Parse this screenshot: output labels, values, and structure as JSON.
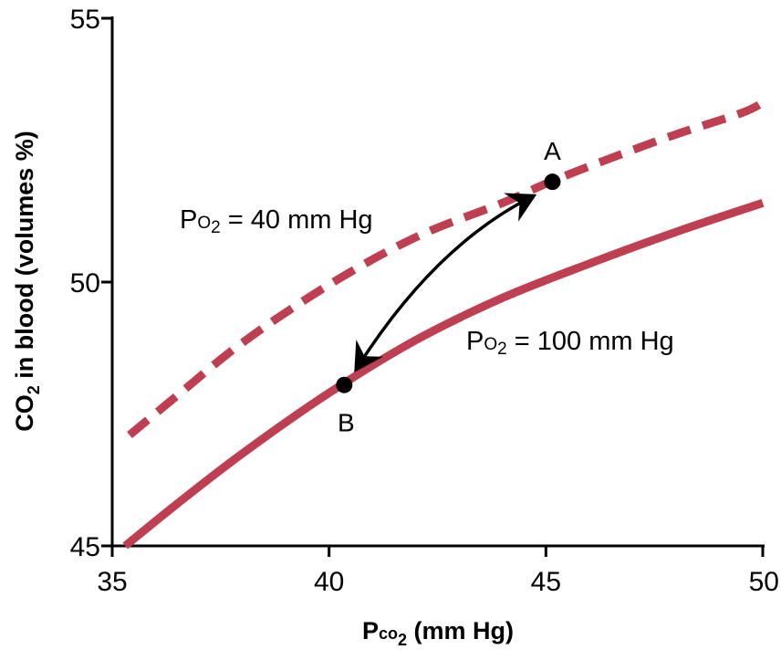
{
  "chart_data": {
    "type": "line",
    "xlabel": {
      "main": "P",
      "sub1": "co",
      "sub2": "2",
      "unit": " (mm Hg)"
    },
    "ylabel": {
      "main": "CO",
      "sub": "2",
      "rest": " in blood (volumes %)"
    },
    "xlim": [
      35,
      50
    ],
    "ylim": [
      45,
      55
    ],
    "xticks": [
      35,
      40,
      45,
      50
    ],
    "yticks": [
      45,
      50,
      55
    ],
    "series": [
      {
        "name": "Po2 = 40 mm Hg",
        "label": {
          "p": "P",
          "o": "O",
          "sub": "2",
          "rest": " = 40 mm Hg"
        },
        "style": "dashed",
        "color": "#bf3f52",
        "points": [
          [
            35.4,
            47.1
          ],
          [
            36.5,
            47.85
          ],
          [
            38,
            48.85
          ],
          [
            40,
            49.95
          ],
          [
            42,
            50.85
          ],
          [
            44,
            51.5
          ],
          [
            45.1,
            51.9
          ],
          [
            46.5,
            52.35
          ],
          [
            48,
            52.8
          ],
          [
            49.5,
            53.2
          ],
          [
            50,
            53.4
          ]
        ]
      },
      {
        "name": "Po2 = 100 mm Hg",
        "label": {
          "p": "P",
          "o": "O",
          "sub": "2",
          "rest": " = 100 mm Hg"
        },
        "style": "solid",
        "color": "#bf3f52",
        "points": [
          [
            35.3,
            45.0
          ],
          [
            36.5,
            45.8
          ],
          [
            38,
            46.75
          ],
          [
            40,
            47.9
          ],
          [
            42,
            48.9
          ],
          [
            44,
            49.7
          ],
          [
            46,
            50.35
          ],
          [
            48,
            50.95
          ],
          [
            50,
            51.5
          ]
        ]
      }
    ],
    "points": [
      {
        "name": "A",
        "x": 45.15,
        "y": 51.9
      },
      {
        "name": "B",
        "x": 40.35,
        "y": 48.05
      }
    ],
    "annotations": [
      "double-headed arrow between point A and point B"
    ]
  }
}
